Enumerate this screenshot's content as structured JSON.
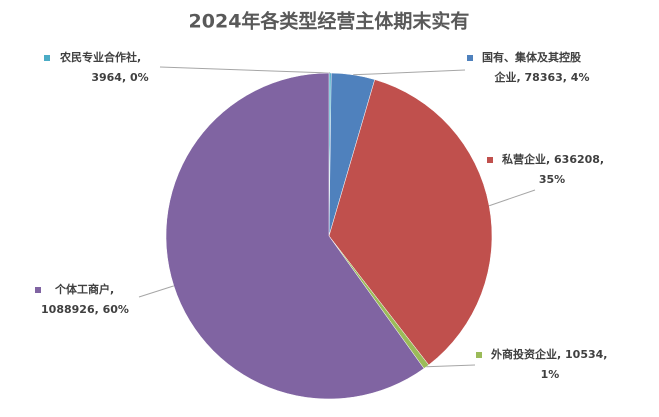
{
  "chart_data": {
    "type": "pie",
    "title": "2024年各类型经营主体期末实有",
    "values": [
      3964,
      78363,
      636208,
      10534,
      1088926
    ],
    "value_labels": [
      [
        "农民专业合作社,",
        "3964, 0%"
      ],
      [
        "国有、集体及其控股",
        "企业, 78363, 4%"
      ],
      [
        "私营企业, 636208,",
        "35%"
      ],
      [
        "外商投资企业, 10534,",
        "1%"
      ],
      [
        "个体工商户,",
        "1088926, 60%"
      ]
    ],
    "colors": [
      "#4bacc6",
      "#4f81bd",
      "#c0504d",
      "#9bbb59",
      "#8064a2"
    ]
  }
}
